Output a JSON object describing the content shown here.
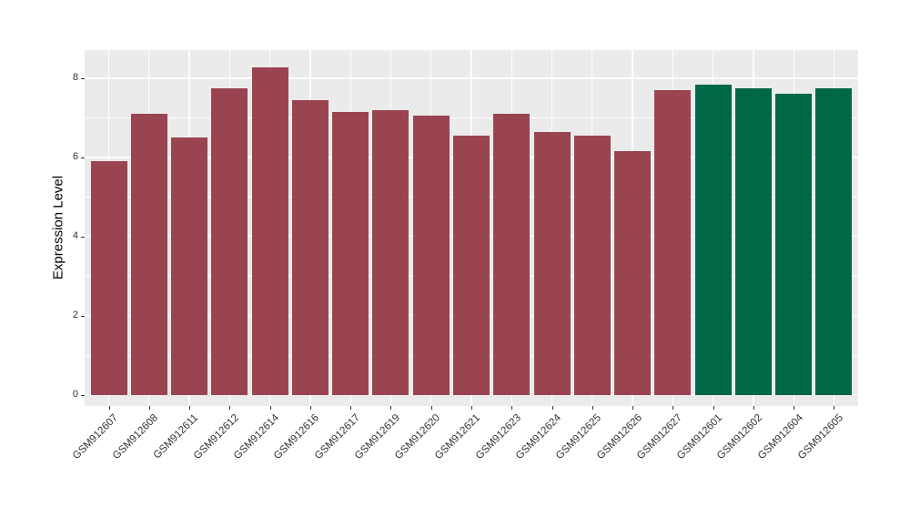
{
  "chart_data": {
    "type": "bar",
    "title": "",
    "xlabel": "",
    "ylabel": "Expression Level",
    "categories": [
      "GSM912607",
      "GSM912608",
      "GSM912611",
      "GSM912612",
      "GSM912614",
      "GSM912616",
      "GSM912617",
      "GSM912619",
      "GSM912620",
      "GSM912621",
      "GSM912623",
      "GSM912624",
      "GSM912625",
      "GSM912626",
      "GSM912627",
      "GSM912601",
      "GSM912602",
      "GSM912604",
      "GSM912605"
    ],
    "values": [
      5.9,
      7.1,
      6.5,
      7.75,
      8.28,
      7.45,
      7.15,
      7.2,
      7.05,
      6.55,
      7.1,
      6.65,
      6.55,
      6.15,
      7.7,
      7.85,
      7.75,
      7.6,
      7.75
    ],
    "bar_colors": [
      "#9A4452",
      "#9A4452",
      "#9A4452",
      "#9A4452",
      "#9A4452",
      "#9A4452",
      "#9A4452",
      "#9A4452",
      "#9A4452",
      "#9A4452",
      "#9A4452",
      "#9A4452",
      "#9A4452",
      "#9A4452",
      "#9A4452",
      "#006747",
      "#006747",
      "#006747",
      "#006747"
    ],
    "group_palette": {
      "red_group": "#9A4452",
      "green_group": "#006747"
    },
    "yticks": [
      0,
      2,
      4,
      6,
      8
    ],
    "minor_gridlines": [
      1,
      3,
      5,
      7
    ],
    "ylim": [
      0,
      8.7
    ],
    "legend": "none",
    "grid": "on",
    "panel_bg": "#EBEBEB",
    "grid_color": "#FFFFFF"
  }
}
